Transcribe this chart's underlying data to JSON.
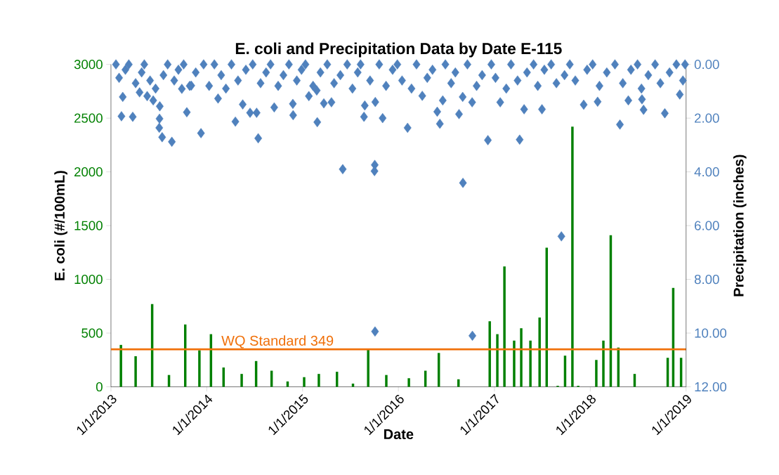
{
  "chart_data": {
    "type": "bar",
    "title": "E. coli and Precipitation Data by Date E-115",
    "xlabel": "Date",
    "ylabel": "E. coli (#/100mL)",
    "y2label": "Precipitation (inches)",
    "xlim": [
      "2013-01-01",
      "2019-01-01"
    ],
    "xticks": [
      {
        "value": "2013-01-01",
        "label": "1/1/2013"
      },
      {
        "value": "2014-01-01",
        "label": "1/1/2014"
      },
      {
        "value": "2015-01-01",
        "label": "1/1/2015"
      },
      {
        "value": "2016-01-01",
        "label": "1/1/2016"
      },
      {
        "value": "2017-01-01",
        "label": "1/1/2017"
      },
      {
        "value": "2018-01-01",
        "label": "1/1/2018"
      },
      {
        "value": "2019-01-01",
        "label": "1/1/2019"
      }
    ],
    "ylim": [
      0,
      3000
    ],
    "yticks": [
      0,
      500,
      1000,
      1500,
      2000,
      2500,
      3000
    ],
    "y2lim": [
      12,
      0
    ],
    "y2ticks": [
      {
        "value": 0,
        "label": "0.00"
      },
      {
        "value": 2,
        "label": "2.00"
      },
      {
        "value": 4,
        "label": "4.00"
      },
      {
        "value": 6,
        "label": "6.00"
      },
      {
        "value": 8,
        "label": "8.00"
      },
      {
        "value": 10,
        "label": "10.00"
      },
      {
        "value": 12,
        "label": "12.00"
      }
    ],
    "ref_lines": [
      {
        "axis": "y",
        "value": 349,
        "label": "WQ Standard 349",
        "color": "#f0700a"
      }
    ],
    "series": [
      {
        "color": "#008000",
        "x": [
          "2013-02-08",
          "2013-04-05",
          "2013-06-07",
          "2013-08-10",
          "2013-10-11",
          "2013-12-04",
          "2014-01-17",
          "2014-03-06",
          "2014-05-14",
          "2014-07-08",
          "2014-09-05",
          "2014-11-05",
          "2015-01-07",
          "2015-03-04",
          "2015-05-12",
          "2015-07-12",
          "2015-09-08",
          "2015-11-16",
          "2016-02-10",
          "2016-04-13",
          "2016-06-03",
          "2016-08-17",
          "2016-12-14",
          "2017-01-12",
          "2017-02-08",
          "2017-03-17",
          "2017-04-13",
          "2017-05-18",
          "2017-06-22",
          "2017-07-19",
          "2017-08-30",
          "2017-09-27",
          "2017-10-25",
          "2017-11-16",
          "2018-01-24",
          "2018-02-20",
          "2018-03-20",
          "2018-04-18",
          "2018-06-19",
          "2018-10-23",
          "2018-11-13",
          "2018-12-13"
        ],
        "values": [
          390,
          285,
          770,
          110,
          580,
          340,
          490,
          180,
          120,
          240,
          150,
          50,
          90,
          120,
          140,
          30,
          345,
          110,
          80,
          150,
          315,
          70,
          610,
          490,
          1120,
          430,
          545,
          430,
          645,
          1295,
          10,
          290,
          2420,
          10,
          250,
          430,
          1410,
          365,
          120,
          270,
          920,
          270
        ]
      },
      {
        "type": "scatter",
        "axis": "y2",
        "marker": "diamond",
        "color": "#4f81bd",
        "x": [
          "2013-02-10",
          "2013-03-25",
          "2013-02-15",
          "2013-04-20",
          "2013-05-19",
          "2013-06-11",
          "2013-07-06",
          "2013-07-05",
          "2013-07-04",
          "2013-07-15",
          "2013-08-21",
          "2013-10-17",
          "2013-12-10",
          "2013-09-28",
          "2013-11-03",
          "2014-02-13",
          "2014-04-20",
          "2014-05-18",
          "2014-06-15",
          "2014-07-10",
          "2014-07-16",
          "2014-09-15",
          "2014-11-25",
          "2014-11-26",
          "2015-02-26",
          "2015-03-23",
          "2015-04-21",
          "2015-06-03",
          "2015-10-03",
          "2015-10-02",
          "2015-08-23",
          "2015-11-02",
          "2015-10-05",
          "2015-08-26",
          "2015-02-24",
          "2015-01-25",
          "2015-10-04",
          "2016-02-05",
          "2016-06-07",
          "2016-05-28",
          "2016-06-18",
          "2016-08-19",
          "2016-09-02",
          "2016-10-08",
          "2016-12-07",
          "2017-04-07",
          "2016-09-03",
          "2017-01-23",
          "2017-04-24",
          "2017-07-01",
          "2017-12-07",
          "2018-01-29",
          "2018-04-24",
          "2018-07-23",
          "2018-10-12",
          "2018-05-26",
          "2018-12-08",
          "2018-07-17",
          "2016-04-01",
          "2016-10-09",
          "2017-09-13",
          "2013-01-20",
          "2013-02-01",
          "2013-02-25",
          "2013-03-10",
          "2013-04-05",
          "2013-04-28",
          "2013-05-08",
          "2013-05-30",
          "2013-06-20",
          "2013-07-20",
          "2013-08-05",
          "2013-08-30",
          "2013-09-15",
          "2013-10-05",
          "2013-10-28",
          "2013-11-20",
          "2013-12-20",
          "2014-01-10",
          "2014-01-30",
          "2014-02-25",
          "2014-03-15",
          "2014-04-05",
          "2014-04-30",
          "2014-05-30",
          "2014-06-25",
          "2014-07-25",
          "2014-08-15",
          "2014-09-01",
          "2014-09-30",
          "2014-10-20",
          "2014-11-10",
          "2014-12-10",
          "2014-12-28",
          "2015-01-12",
          "2015-02-10",
          "2015-03-10",
          "2015-04-05",
          "2015-05-01",
          "2015-05-25",
          "2015-06-20",
          "2015-07-10",
          "2015-07-30",
          "2015-08-10",
          "2015-09-15",
          "2015-10-20",
          "2015-11-15",
          "2015-12-10",
          "2015-12-28",
          "2016-01-15",
          "2016-02-20",
          "2016-03-10",
          "2016-04-20",
          "2016-05-10",
          "2016-06-28",
          "2016-07-20",
          "2016-08-05",
          "2016-09-20",
          "2016-10-25",
          "2016-11-15",
          "2016-12-20",
          "2017-01-05",
          "2017-02-15",
          "2017-03-05",
          "2017-03-30",
          "2017-05-05",
          "2017-05-30",
          "2017-06-15",
          "2017-07-10",
          "2017-08-05",
          "2017-08-25",
          "2017-09-25",
          "2017-10-15",
          "2017-11-05",
          "2017-12-20",
          "2018-01-10",
          "2018-02-05",
          "2018-03-05",
          "2018-04-05",
          "2018-05-05",
          "2018-06-05",
          "2018-06-30",
          "2018-07-15",
          "2018-08-10",
          "2018-09-05",
          "2018-09-25",
          "2018-10-30",
          "2018-11-25",
          "2018-12-20",
          "2018-12-28"
        ],
        "values": [
          1.93,
          1.95,
          1.21,
          1.04,
          1.18,
          1.34,
          1.56,
          2.02,
          2.36,
          2.71,
          2.88,
          1.78,
          2.56,
          0.91,
          0.79,
          1.27,
          2.13,
          1.49,
          1.8,
          1.8,
          2.75,
          1.6,
          1.47,
          1.89,
          2.15,
          1.45,
          1.41,
          3.9,
          3.74,
          3.97,
          1.95,
          2.0,
          1.4,
          1.53,
          0.97,
          1.18,
          9.94,
          2.36,
          2.21,
          1.76,
          1.34,
          1.85,
          1.21,
          1.41,
          2.82,
          2.8,
          4.41,
          1.41,
          1.67,
          1.67,
          1.5,
          1.39,
          2.24,
          1.69,
          1.82,
          1.34,
          1.12,
          1.3,
          1.17,
          10.1,
          6.4,
          0,
          0.5,
          0.2,
          0,
          0.7,
          0.3,
          0,
          0.6,
          0.9,
          0.4,
          0,
          0.6,
          0.2,
          0,
          0.8,
          0.3,
          0,
          0.8,
          0,
          0.4,
          0.9,
          0,
          0.6,
          0.2,
          0,
          0.7,
          0.3,
          0,
          0.8,
          0.4,
          0,
          0.6,
          0.2,
          0,
          0.8,
          0.3,
          0,
          0.7,
          0.4,
          0,
          0.9,
          0.3,
          0,
          0.6,
          0,
          0.8,
          0.2,
          0,
          0.6,
          0.9,
          0,
          0.5,
          0.2,
          0,
          0.7,
          0.3,
          0,
          0.8,
          0.4,
          0,
          0.5,
          0.9,
          0,
          0.6,
          0.3,
          0,
          0.8,
          0.2,
          0,
          0.7,
          0.4,
          0,
          0.6,
          0.2,
          0,
          0.8,
          0.3,
          0,
          0.7,
          0.2,
          0,
          0.9,
          0.4,
          0,
          0.7,
          0.3,
          0,
          0.6,
          0
        ]
      }
    ]
  }
}
